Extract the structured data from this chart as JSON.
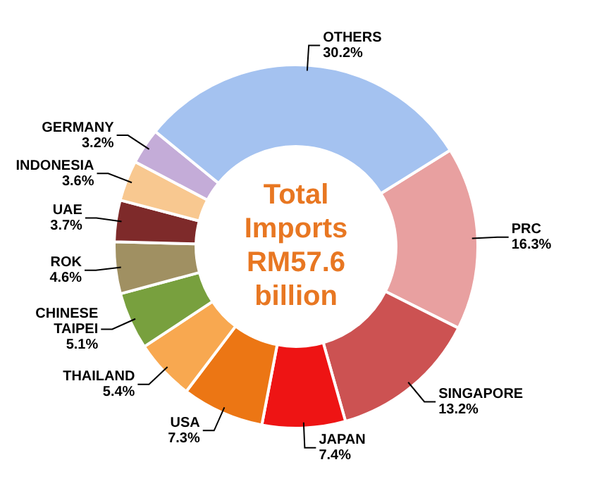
{
  "chart_data": {
    "type": "donut",
    "title": "Total Imports RM57.6 billion",
    "categories": [
      "PRC",
      "SINGAPORE",
      "JAPAN",
      "USA",
      "THAILAND",
      "CHINESE TAIPEI",
      "ROK",
      "UAE",
      "INDONESIA",
      "GERMANY",
      "OTHERS"
    ],
    "values": [
      16.3,
      13.2,
      7.4,
      7.3,
      5.4,
      5.1,
      4.6,
      3.7,
      3.6,
      3.2,
      30.2
    ],
    "colors": [
      "#e8a0a0",
      "#cc5252",
      "#ee1414",
      "#ec7614",
      "#f8a850",
      "#78a03e",
      "#a09062",
      "#7e2a2a",
      "#f8c890",
      "#c4acd8",
      "#a4c2f0"
    ],
    "value_labels": [
      "16.3%",
      "13.2%",
      "7.4%",
      "7.3%",
      "5.4%",
      "5.1%",
      "4.6%",
      "3.7%",
      "3.6%",
      "3.2%",
      "30.2%"
    ],
    "legend": false
  }
}
